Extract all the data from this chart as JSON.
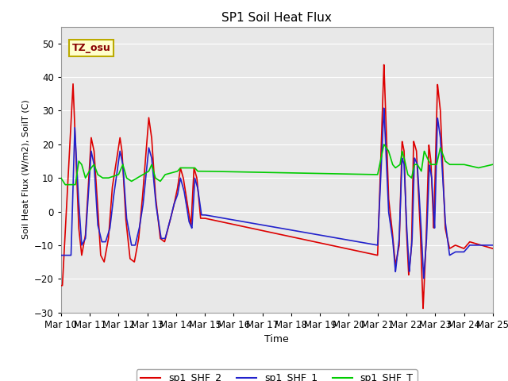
{
  "title": "SP1 Soil Heat Flux",
  "xlabel": "Time",
  "ylabel": "Soil Heat Flux (W/m2), SoilT (C)",
  "ylim": [
    -30,
    55
  ],
  "annotation": "TZ_osu",
  "annotation_color": "#880000",
  "annotation_bg": "#ffffcc",
  "annotation_border": "#bbaa00",
  "bg_color": "#e8e8e8",
  "line_colors": {
    "shf2": "#dd0000",
    "shf1": "#2222cc",
    "shft": "#00cc00"
  },
  "legend_labels": [
    "sp1_SHF_2",
    "sp1_SHF_1",
    "sp1_SHF_T"
  ],
  "xtick_labels": [
    "Mar 10",
    "Mar 11",
    "Mar 12",
    "Mar 13",
    "Mar 14",
    "Mar 15",
    "Mar 16",
    "Mar 17",
    "Mar 18",
    "Mar 19",
    "Mar 20",
    "Mar 21",
    "Mar 22",
    "Mar 23",
    "Mar 24",
    "Mar 25"
  ]
}
